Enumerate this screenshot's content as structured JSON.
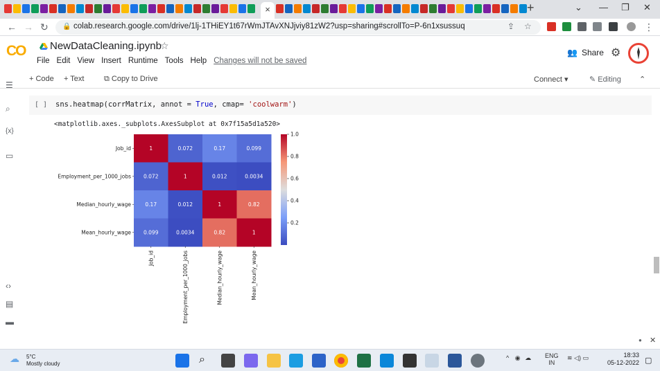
{
  "browser": {
    "url": "colab.research.google.com/drive/1lj-1THiEY1t67rWmJTAvXNJjviy81zW2?usp=sharing#scrollTo=P-6n1xsussuq",
    "active_tab_close": "×",
    "new_tab": "+",
    "window_controls": [
      "⌄",
      "—",
      "❐",
      "✕"
    ]
  },
  "colab": {
    "logo": "CO",
    "filename": "NewDataCleaning.ipynb",
    "menus": [
      "File",
      "Edit",
      "View",
      "Insert",
      "Runtime",
      "Tools",
      "Help"
    ],
    "unsaved": "Changes will not be saved",
    "share_label": "Share",
    "toolbar": {
      "code": "+ Code",
      "text": "+ Text",
      "copy_to_drive": "Copy to Drive",
      "connect": "Connect",
      "editing": "Editing"
    }
  },
  "cell": {
    "bracket": "[ ]",
    "code_parts": [
      "sns.heatmap(corrMatrix, annot = ",
      "True",
      ", cmap= ",
      "'coolwarm'",
      ")"
    ],
    "output_text": "<matplotlib.axes._subplots.AxesSubplot at 0x7f15a5d1a520>"
  },
  "chart_data": {
    "type": "heatmap",
    "labels": [
      "Job_id",
      "Employment_per_1000_jobs",
      "Median_hourly_wage",
      "Mean_hourly_wage"
    ],
    "values": [
      [
        1,
        0.072,
        0.17,
        0.099
      ],
      [
        0.072,
        1,
        0.012,
        0.0034
      ],
      [
        0.17,
        0.012,
        1,
        0.82
      ],
      [
        0.099,
        0.0034,
        0.82,
        1
      ]
    ],
    "annotations": [
      [
        "1",
        "0.072",
        "0.17",
        "0.099"
      ],
      [
        "0.072",
        "1",
        "0.012",
        "0.0034"
      ],
      [
        "0.17",
        "0.012",
        "1",
        "0.82"
      ],
      [
        "0.099",
        "0.0034",
        "0.82",
        "1"
      ]
    ],
    "cmap": "coolwarm",
    "colorbar_range": [
      0,
      1.0
    ],
    "colorbar_ticks": [
      "1.0",
      "0.8",
      "0.6",
      "0.4",
      "0.2"
    ],
    "colorbar_tick_values": [
      1.0,
      0.8,
      0.6,
      0.4,
      0.2
    ]
  },
  "taskbar": {
    "temperature": "5°C",
    "weather": "Mostly cloudy",
    "language": "ENG",
    "region": "IN",
    "time": "18:33",
    "date": "05-12-2022"
  },
  "colors": {
    "accent_orange": "#f9ab00",
    "cool": "#3b4cc0",
    "warm": "#b40426"
  }
}
